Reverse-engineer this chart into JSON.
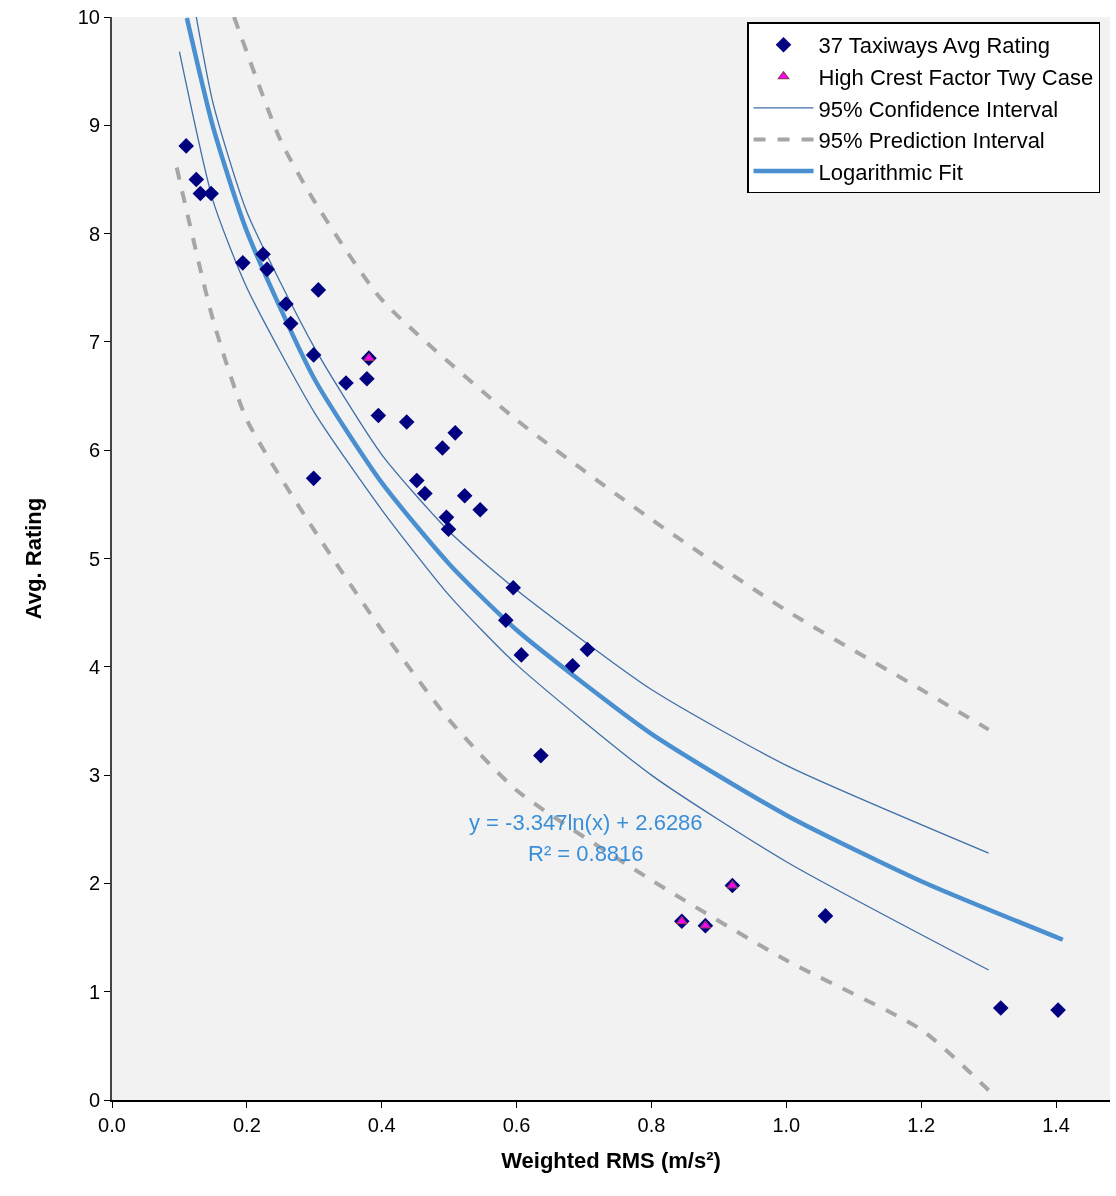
{
  "chart_data": {
    "type": "scatter",
    "xlabel": "Weighted RMS (m/s²)",
    "ylabel": "Avg. Rating",
    "xlim": [
      0,
      1.48
    ],
    "ylim": [
      0,
      10
    ],
    "xticks": [
      {
        "value": 0,
        "label": "0.0"
      },
      {
        "value": 0.2,
        "label": "0.2"
      },
      {
        "value": 0.4,
        "label": "0.4"
      },
      {
        "value": 0.6,
        "label": "0.6"
      },
      {
        "value": 0.8,
        "label": "0.8"
      },
      {
        "value": 1,
        "label": "1.0"
      },
      {
        "value": 1.2,
        "label": "1.2"
      },
      {
        "value": 1.4,
        "label": "1.4"
      }
    ],
    "yticks": [
      0,
      1,
      2,
      3,
      4,
      5,
      6,
      7,
      8,
      9,
      10
    ],
    "grid": false,
    "legend": "top right",
    "series": [
      {
        "name": "37 Taxiways Avg Rating",
        "marker": "diamond",
        "color": "#000080",
        "x": [
          0.11,
          0.125,
          0.131,
          0.147,
          0.194,
          0.224,
          0.23,
          0.258,
          0.265,
          0.306,
          0.299,
          0.378,
          0.347,
          0.395,
          0.299,
          0.437,
          0.49,
          0.509,
          0.452,
          0.464,
          0.523,
          0.546,
          0.496,
          0.499,
          0.595,
          0.584,
          0.607,
          0.683,
          0.705,
          0.636,
          1.058,
          1.318,
          1.403,
          0.381,
          0.845,
          0.88,
          0.92
        ],
        "values": [
          8.81,
          8.5,
          8.37,
          8.37,
          7.73,
          7.81,
          7.67,
          7.35,
          7.17,
          7.48,
          6.88,
          6.66,
          6.62,
          6.32,
          5.74,
          6.26,
          6.02,
          6.16,
          5.72,
          5.6,
          5.58,
          5.45,
          5.38,
          5.27,
          4.73,
          4.43,
          4.11,
          4.01,
          4.16,
          3.18,
          1.7,
          0.85,
          0.83,
          6.85,
          1.65,
          1.61,
          1.98
        ]
      },
      {
        "name": "High Crest Factor Twy Case",
        "marker": "triangle",
        "color": "#ff00ff",
        "x": [
          0.381,
          0.845,
          0.88,
          0.92
        ],
        "values": [
          6.85,
          1.65,
          1.61,
          1.98
        ]
      },
      {
        "name": "95% Confidence Interval",
        "type": "line",
        "marker": "none",
        "line_style": "solid",
        "color": "#3f6fa8",
        "x": [
          0.125,
          0.15,
          0.2,
          0.3,
          0.4,
          0.5,
          0.6,
          0.8,
          1.0,
          1.3
        ],
        "values": [
          10,
          9.2,
          8.2,
          6.95,
          5.96,
          5.25,
          4.71,
          3.79,
          3.09,
          2.28
        ]
      },
      {
        "type": "line",
        "marker": "none",
        "line_style": "solid",
        "color": "#3f6fa8",
        "x": [
          0.1,
          0.15,
          0.2,
          0.3,
          0.4,
          0.5,
          0.6,
          0.8,
          1.0,
          1.3
        ],
        "values": [
          9.68,
          8.3,
          7.5,
          6.35,
          5.45,
          4.66,
          4.02,
          3.0,
          2.2,
          1.2
        ]
      },
      {
        "name": "95% Prediction Interval",
        "type": "line",
        "marker": "none",
        "line_style": "dashed",
        "color": "#a6a6a6",
        "x": [
          0.181,
          0.25,
          0.3,
          0.4,
          0.6,
          0.8,
          1.0,
          1.2,
          1.3
        ],
        "values": [
          10,
          8.86,
          8.3,
          7.39,
          6.28,
          5.36,
          4.52,
          3.79,
          3.42
        ]
      },
      {
        "type": "line",
        "marker": "none",
        "line_style": "dashed",
        "color": "#a6a6a6",
        "x": [
          0.096,
          0.15,
          0.2,
          0.3,
          0.4,
          0.5,
          0.6,
          0.8,
          1.0,
          1.2,
          1.3
        ],
        "values": [
          8.61,
          7.2,
          6.28,
          5.26,
          4.34,
          3.51,
          2.86,
          2.03,
          1.29,
          0.65,
          0.09
        ]
      },
      {
        "name": "Logarithmic Fit",
        "type": "line",
        "marker": "none",
        "line_style": "solid",
        "color": "#4a8fd0",
        "x": [
          0.111,
          0.15,
          0.2,
          0.3,
          0.4,
          0.5,
          0.6,
          0.8,
          1.0,
          1.2,
          1.41
        ],
        "values": [
          9.99,
          8.98,
          8.02,
          6.66,
          5.7,
          4.95,
          4.34,
          3.38,
          2.63,
          2.02,
          1.48
        ]
      }
    ],
    "annotations": [
      "y = -3.347ln(x) + 2.6286",
      "R² = 0.8816"
    ]
  }
}
